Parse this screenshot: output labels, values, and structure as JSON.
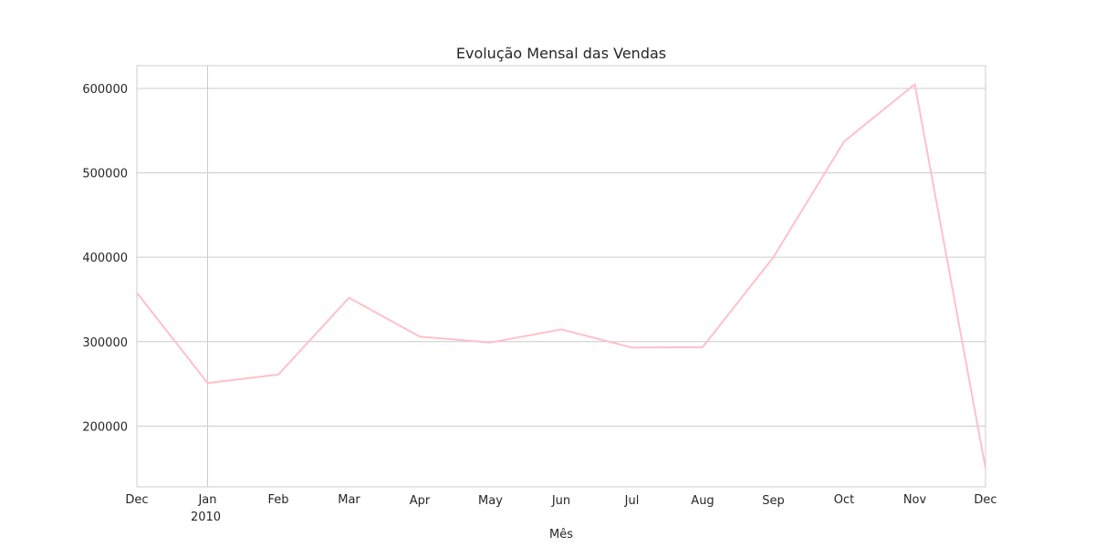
{
  "chart_data": {
    "type": "line",
    "title": "Evolução Mensal das Vendas",
    "xlabel": "Mês",
    "ylabel": "",
    "categories": [
      "2009-12",
      "2010-01",
      "2010-02",
      "2010-03",
      "2010-04",
      "2010-05",
      "2010-06",
      "2010-07",
      "2010-08",
      "2010-09",
      "2010-10",
      "2010-11",
      "2010-12"
    ],
    "x_tick_labels": [
      "Dec",
      "Jan",
      "Feb",
      "Mar",
      "Apr",
      "May",
      "Jun",
      "Jul",
      "Aug",
      "Sep",
      "Oct",
      "Nov",
      "Dec"
    ],
    "x_year_label": "2010",
    "series": [
      {
        "values": [
          358000,
          251000,
          261000,
          352000,
          306000,
          299000,
          314500,
          293000,
          293500,
          400000,
          537000,
          605000,
          150000
        ],
        "color": "#ffc0cb"
      }
    ],
    "yticks": [
      200000,
      300000,
      400000,
      500000,
      600000
    ],
    "ylim": [
      128000,
      627000
    ],
    "grid": true,
    "legend": "none"
  }
}
